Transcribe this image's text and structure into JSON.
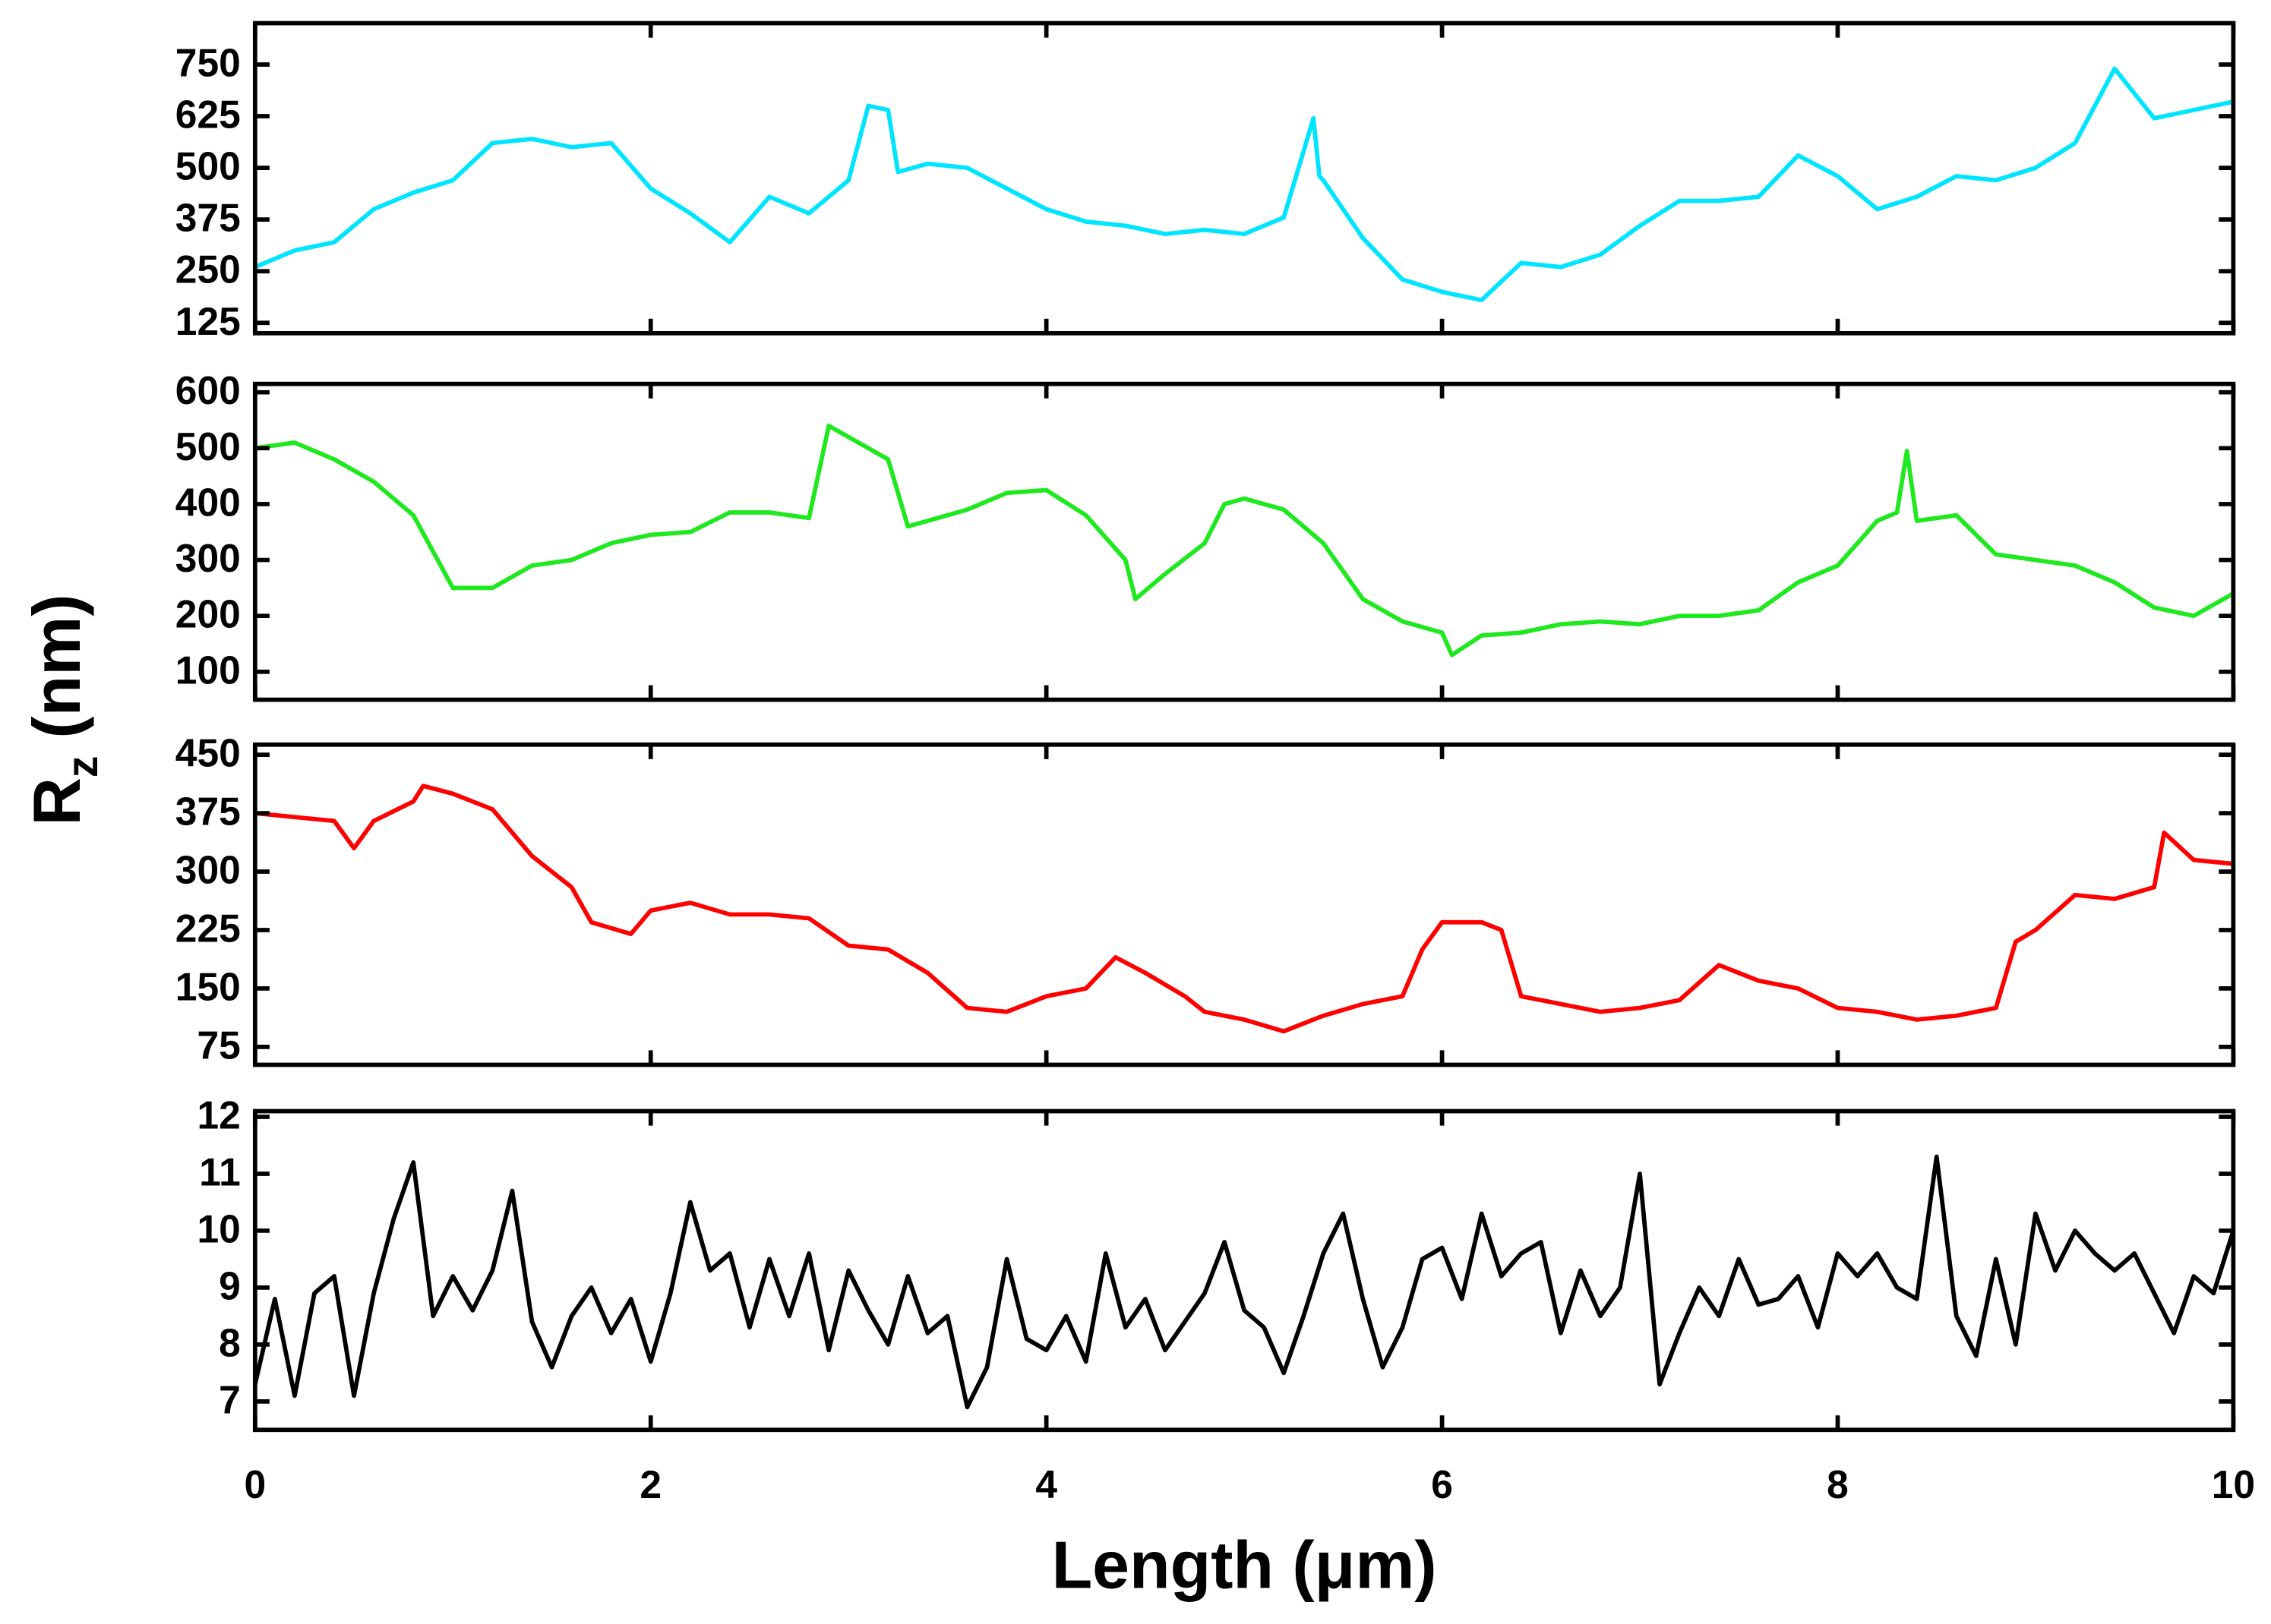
{
  "ylabel": {
    "symbol": "R",
    "subscript": "z",
    "unit": "(nm)"
  },
  "chart_data": [
    {
      "type": "line",
      "color": "#00e5ff",
      "xlim": [
        0,
        10
      ],
      "xticks": [
        0,
        2,
        4,
        6,
        8,
        10
      ],
      "ylim": [
        100,
        850
      ],
      "yticks": [
        125,
        250,
        375,
        500,
        625,
        750
      ],
      "x": [
        0,
        0.2,
        0.4,
        0.6,
        0.8,
        1,
        1.2,
        1.4,
        1.6,
        1.8,
        2,
        2.2,
        2.4,
        2.6,
        2.8,
        3,
        3.1,
        3.2,
        3.25,
        3.4,
        3.6,
        3.8,
        4,
        4.2,
        4.4,
        4.6,
        4.8,
        5,
        5.2,
        5.35,
        5.38,
        5.4,
        5.6,
        5.8,
        6,
        6.2,
        6.4,
        6.6,
        6.8,
        7,
        7.2,
        7.4,
        7.6,
        7.8,
        8,
        8.2,
        8.4,
        8.6,
        8.8,
        9,
        9.2,
        9.4,
        9.6,
        9.8,
        10
      ],
      "values": [
        260,
        300,
        320,
        400,
        440,
        470,
        560,
        570,
        550,
        560,
        450,
        390,
        320,
        430,
        390,
        470,
        650,
        640,
        490,
        510,
        500,
        450,
        400,
        370,
        360,
        340,
        350,
        340,
        380,
        620,
        480,
        470,
        330,
        230,
        200,
        180,
        270,
        260,
        290,
        360,
        420,
        420,
        430,
        530,
        480,
        400,
        430,
        480,
        470,
        500,
        560,
        740,
        620,
        640,
        660
      ]
    },
    {
      "type": "line",
      "color": "#1ee81e",
      "xlim": [
        0,
        10
      ],
      "xticks": [
        0,
        2,
        4,
        6,
        8,
        10
      ],
      "ylim": [
        50,
        615
      ],
      "yticks": [
        100,
        200,
        300,
        400,
        500,
        600
      ],
      "x": [
        0,
        0.2,
        0.4,
        0.6,
        0.8,
        1,
        1.2,
        1.4,
        1.6,
        1.8,
        2,
        2.2,
        2.4,
        2.6,
        2.8,
        2.9,
        3.2,
        3.3,
        3.6,
        3.8,
        4,
        4.2,
        4.4,
        4.45,
        4.6,
        4.8,
        4.9,
        5,
        5.2,
        5.4,
        5.6,
        5.8,
        6,
        6.05,
        6.2,
        6.4,
        6.6,
        6.8,
        7,
        7.2,
        7.4,
        7.6,
        7.8,
        8,
        8.2,
        8.3,
        8.35,
        8.4,
        8.6,
        8.8,
        9,
        9.2,
        9.4,
        9.6,
        9.8,
        10
      ],
      "values": [
        500,
        510,
        480,
        440,
        380,
        250,
        250,
        290,
        300,
        330,
        345,
        350,
        385,
        385,
        375,
        540,
        480,
        360,
        390,
        420,
        425,
        380,
        300,
        230,
        275,
        330,
        400,
        410,
        390,
        330,
        230,
        190,
        170,
        130,
        165,
        170,
        185,
        190,
        185,
        200,
        200,
        210,
        260,
        290,
        370,
        385,
        495,
        370,
        380,
        310,
        300,
        290,
        260,
        215,
        200,
        240
      ]
    },
    {
      "type": "line",
      "color": "#ff0000",
      "xlim": [
        0,
        10
      ],
      "xticks": [
        0,
        2,
        4,
        6,
        8,
        10
      ],
      "ylim": [
        52,
        463
      ],
      "yticks": [
        75,
        150,
        225,
        300,
        375,
        450
      ],
      "x": [
        0,
        0.2,
        0.4,
        0.5,
        0.6,
        0.8,
        0.85,
        1,
        1.2,
        1.4,
        1.6,
        1.7,
        1.9,
        2,
        2.2,
        2.4,
        2.6,
        2.8,
        3,
        3.2,
        3.4,
        3.6,
        3.8,
        4,
        4.2,
        4.35,
        4.5,
        4.7,
        4.8,
        5,
        5.2,
        5.4,
        5.6,
        5.8,
        5.9,
        6,
        6.2,
        6.3,
        6.4,
        6.6,
        6.8,
        7,
        7.2,
        7.4,
        7.6,
        7.8,
        8,
        8.2,
        8.4,
        8.6,
        8.8,
        8.9,
        9,
        9.2,
        9.4,
        9.6,
        9.65,
        9.8,
        10
      ],
      "values": [
        375,
        370,
        365,
        330,
        365,
        390,
        410,
        400,
        380,
        320,
        280,
        235,
        220,
        250,
        260,
        245,
        245,
        240,
        205,
        200,
        170,
        125,
        120,
        140,
        150,
        190,
        170,
        140,
        120,
        110,
        95,
        115,
        130,
        140,
        200,
        235,
        235,
        225,
        140,
        130,
        120,
        125,
        135,
        180,
        160,
        150,
        125,
        120,
        110,
        115,
        125,
        210,
        225,
        270,
        265,
        280,
        350,
        315,
        310
      ]
    },
    {
      "type": "line",
      "color": "#000000",
      "xlim": [
        0,
        10
      ],
      "xticks": [
        0,
        2,
        4,
        6,
        8,
        10
      ],
      "ylim": [
        6.5,
        12.1
      ],
      "yticks": [
        7,
        8,
        9,
        10,
        11,
        12
      ],
      "xlabel": "Length (μm)",
      "x": [
        0,
        0.1,
        0.2,
        0.3,
        0.4,
        0.5,
        0.6,
        0.7,
        0.8,
        0.9,
        1,
        1.1,
        1.2,
        1.3,
        1.4,
        1.5,
        1.6,
        1.7,
        1.8,
        1.9,
        2,
        2.1,
        2.2,
        2.3,
        2.4,
        2.5,
        2.6,
        2.7,
        2.8,
        2.9,
        3,
        3.1,
        3.2,
        3.3,
        3.4,
        3.5,
        3.6,
        3.7,
        3.8,
        3.9,
        4,
        4.1,
        4.2,
        4.3,
        4.4,
        4.5,
        4.6,
        4.7,
        4.8,
        4.9,
        5,
        5.1,
        5.2,
        5.3,
        5.4,
        5.5,
        5.6,
        5.7,
        5.8,
        5.9,
        6,
        6.1,
        6.2,
        6.3,
        6.4,
        6.5,
        6.6,
        6.7,
        6.8,
        6.9,
        7,
        7.1,
        7.2,
        7.3,
        7.4,
        7.5,
        7.6,
        7.7,
        7.8,
        7.9,
        8,
        8.1,
        8.2,
        8.3,
        8.4,
        8.5,
        8.6,
        8.7,
        8.8,
        8.9,
        9,
        9.1,
        9.2,
        9.3,
        9.4,
        9.5,
        9.6,
        9.7,
        9.8,
        9.9,
        10
      ],
      "values": [
        7.3,
        8.8,
        7.1,
        8.9,
        9.2,
        7.1,
        8.9,
        10.2,
        11.2,
        8.5,
        9.2,
        8.6,
        9.3,
        10.7,
        8.4,
        7.6,
        8.5,
        9.0,
        8.2,
        8.8,
        7.7,
        8.9,
        10.5,
        9.3,
        9.6,
        8.3,
        9.5,
        8.5,
        9.6,
        7.9,
        9.3,
        8.6,
        8.0,
        9.2,
        8.2,
        8.5,
        6.9,
        7.6,
        9.5,
        8.1,
        7.9,
        8.5,
        7.7,
        9.6,
        8.3,
        8.8,
        7.9,
        8.4,
        8.9,
        9.8,
        8.6,
        8.3,
        7.5,
        8.5,
        9.6,
        10.3,
        8.8,
        7.6,
        8.3,
        9.5,
        9.7,
        8.8,
        10.3,
        9.2,
        9.6,
        9.8,
        8.2,
        9.3,
        8.5,
        9.0,
        11.0,
        7.3,
        8.2,
        9.0,
        8.5,
        9.5,
        8.7,
        8.8,
        9.2,
        8.3,
        9.6,
        9.2,
        9.6,
        9.0,
        8.8,
        11.3,
        8.5,
        7.8,
        9.5,
        8.0,
        10.3,
        9.3,
        10.0,
        9.6,
        9.3,
        9.6,
        8.9,
        8.2,
        9.2,
        8.9,
        10.0
      ]
    }
  ]
}
